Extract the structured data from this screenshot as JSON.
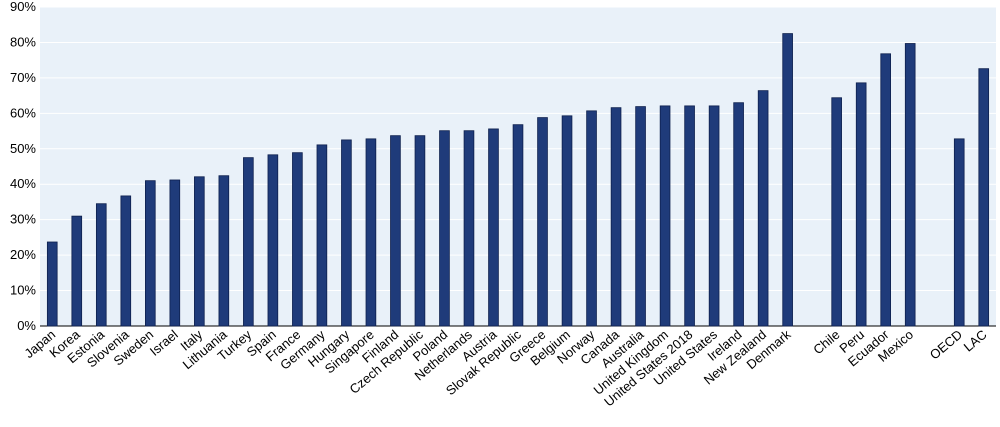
{
  "chart_data": {
    "type": "bar",
    "categories": [
      "Japan",
      "Korea",
      "Estonia",
      "Slovenia",
      "Sweden",
      "Israel",
      "Italy",
      "Lithuania",
      "Turkey",
      "Spain",
      "France",
      "Germany",
      "Hungary",
      "Singapore",
      "Finland",
      "Czech Republic",
      "Poland",
      "Netherlands",
      "Austria",
      "Slovak Republic",
      "Greece",
      "Belgium",
      "Norway",
      "Canada",
      "Australia",
      "United Kingdom",
      "United States 2018",
      "United States",
      "Ireland",
      "New Zealand",
      "Denmark",
      null,
      "Chile",
      "Peru",
      "Ecuador",
      "Mexico",
      null,
      "OECD",
      "LAC"
    ],
    "values": [
      23.7,
      31,
      34.5,
      36.7,
      41,
      41.2,
      42.1,
      42.4,
      47.5,
      48.3,
      48.9,
      51.1,
      52.5,
      52.8,
      53.7,
      53.7,
      55.1,
      55.1,
      55.6,
      56.8,
      58.8,
      59.3,
      60.7,
      61.6,
      61.9,
      62.1,
      62.1,
      62.1,
      63,
      66.4,
      82.5,
      null,
      64.4,
      68.6,
      76.8,
      79.7,
      null,
      52.8,
      72.6
    ],
    "color": "#1f3b7a",
    "ylim": [
      0,
      90
    ],
    "yticks": [
      {
        "value": 0,
        "label": "0%"
      },
      {
        "value": 10,
        "label": "10%"
      },
      {
        "value": 20,
        "label": "20%"
      },
      {
        "value": 30,
        "label": "30%"
      },
      {
        "value": 40,
        "label": "40%"
      },
      {
        "value": 50,
        "label": "50%"
      },
      {
        "value": 60,
        "label": "60%"
      },
      {
        "value": 70,
        "label": "70%"
      },
      {
        "value": 80,
        "label": "80%"
      },
      {
        "value": 90,
        "label": "90%"
      }
    ],
    "grid": true
  }
}
